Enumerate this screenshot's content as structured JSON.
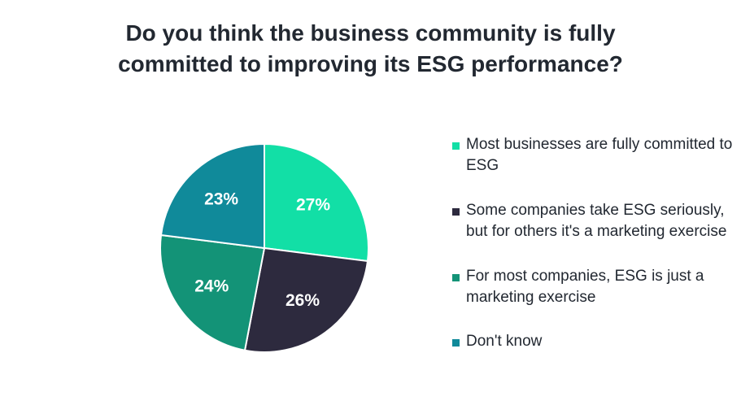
{
  "title_lines": [
    "Do you think the business community is fully",
    "committed to improving its ESG performance?"
  ],
  "chart_data": {
    "type": "pie",
    "title": "Do you think the business community is fully committed to improving its ESG performance?",
    "slices": [
      {
        "label": "Most businesses are fully committed to ESG",
        "value": 27,
        "display": "27%",
        "color": "#12DFA6"
      },
      {
        "label": "Some companies take ESG seriously, but for others it's a marketing exercise",
        "value": 26,
        "display": "26%",
        "color": "#2D2A3E"
      },
      {
        "label": "For most companies, ESG is just a marketing exercise",
        "value": 24,
        "display": "24%",
        "color": "#139377"
      },
      {
        "label": "Don't know",
        "value": 23,
        "display": "23%",
        "color": "#108A9A"
      }
    ],
    "start_angle_deg": 0,
    "direction": "clockwise",
    "legend_position": "right"
  }
}
